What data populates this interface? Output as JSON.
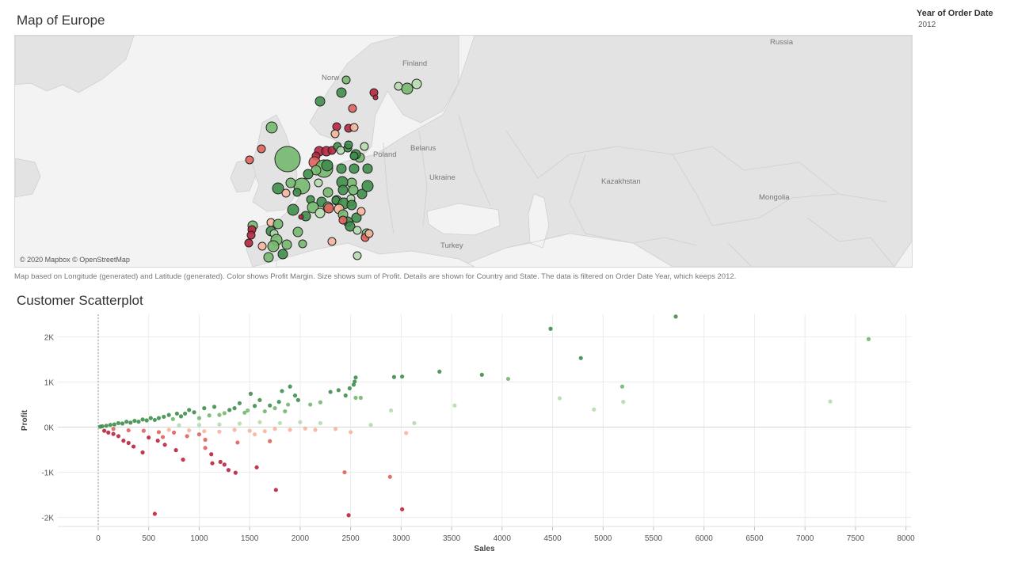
{
  "map": {
    "title": "Map of Europe",
    "attribution": "© 2020 Mapbox © OpenStreetMap",
    "labels": [
      {
        "text": "Russia",
        "name": "map-label-russia"
      },
      {
        "text": "Finland",
        "name": "map-label-finland"
      },
      {
        "text": "Norw",
        "name": "map-label-norway"
      },
      {
        "text": "Poland",
        "name": "map-label-poland"
      },
      {
        "text": "Belarus",
        "name": "map-label-belarus"
      },
      {
        "text": "Ukraine",
        "name": "map-label-ukraine"
      },
      {
        "text": "Kazakhstan",
        "name": "map-label-kazakhstan"
      },
      {
        "text": "Mongolia",
        "name": "map-label-mongolia"
      },
      {
        "text": "Turkey",
        "name": "map-label-turkey"
      }
    ],
    "caption": "Map based on Longitude (generated) and Latitude (generated).  Color shows Profit Margin.  Size shows sum of Profit.  Details are shown for Country and State. The data is filtered on Order Date Year, which keeps 2012.",
    "colors": {
      "ocean": "#f4f4f4",
      "land": "#e4e4e4",
      "border": "#cfcfcf",
      "marker_outline": "#222222"
    }
  },
  "filter": {
    "label": "Year of Order Date",
    "value": "2012"
  },
  "chart_data": {
    "type": "scatter",
    "title": "Customer Scatterplot",
    "xlabel": "Sales",
    "ylabel": "Profit",
    "xlim": [
      -400,
      8050
    ],
    "ylim": [
      -2200,
      2500
    ],
    "xticks": [
      0,
      500,
      1000,
      1500,
      2000,
      2500,
      3000,
      3500,
      4000,
      4500,
      5000,
      5500,
      6000,
      6500,
      7000,
      7500,
      8000
    ],
    "xtick_labels": [
      "0",
      "500",
      "1000",
      "1500",
      "2000",
      "2500",
      "3000",
      "3500",
      "4000",
      "4500",
      "5000",
      "5500",
      "6000",
      "6500",
      "7000",
      "7500",
      "8000"
    ],
    "yticks": [
      -2000,
      -1000,
      0,
      1000,
      2000
    ],
    "ytick_labels": [
      "-2K",
      "-1K",
      "0K",
      "1K",
      "2K"
    ],
    "grid": true,
    "color_encoding": "Profit Margin",
    "colors": {
      "strong_positive": "#3e8e4a",
      "positive": "#74b86e",
      "light_positive": "#b5dcae",
      "light_negative": "#f6b59c",
      "negative": "#e0625c",
      "strong_negative": "#b8243e"
    },
    "points": [
      {
        "x": 4480,
        "y": 2180
      },
      {
        "x": 5720,
        "y": 2450
      },
      {
        "x": 7630,
        "y": 1950
      },
      {
        "x": 4780,
        "y": 1530
      },
      {
        "x": 3380,
        "y": 1230
      },
      {
        "x": 3800,
        "y": 1160
      },
      {
        "x": 4060,
        "y": 1070
      },
      {
        "x": 3010,
        "y": 1120
      },
      {
        "x": 2930,
        "y": 1110
      },
      {
        "x": 5190,
        "y": 900
      },
      {
        "x": 5200,
        "y": 560
      },
      {
        "x": 4570,
        "y": 640
      },
      {
        "x": 4910,
        "y": 390
      },
      {
        "x": 7250,
        "y": 570
      },
      {
        "x": 3530,
        "y": 480
      },
      {
        "x": 3130,
        "y": 90
      },
      {
        "x": 3050,
        "y": -130
      },
      {
        "x": 2900,
        "y": 370
      },
      {
        "x": 2700,
        "y": 50
      },
      {
        "x": 2550,
        "y": 1100
      },
      {
        "x": 2540,
        "y": 1010
      },
      {
        "x": 2530,
        "y": 940
      },
      {
        "x": 2490,
        "y": 860
      },
      {
        "x": 2450,
        "y": 700
      },
      {
        "x": 2380,
        "y": 820
      },
      {
        "x": 2300,
        "y": 780
      },
      {
        "x": 2200,
        "y": 550
      },
      {
        "x": 2100,
        "y": 500
      },
      {
        "x": 2550,
        "y": 650
      },
      {
        "x": 2600,
        "y": 650
      },
      {
        "x": 1950,
        "y": 700
      },
      {
        "x": 1980,
        "y": 600
      },
      {
        "x": 1900,
        "y": 900
      },
      {
        "x": 1880,
        "y": 500
      },
      {
        "x": 1850,
        "y": 350
      },
      {
        "x": 1820,
        "y": 800
      },
      {
        "x": 1790,
        "y": 560
      },
      {
        "x": 1750,
        "y": 420
      },
      {
        "x": 1700,
        "y": 480
      },
      {
        "x": 1650,
        "y": 350
      },
      {
        "x": 1600,
        "y": 600
      },
      {
        "x": 1550,
        "y": 470
      },
      {
        "x": 1510,
        "y": 740
      },
      {
        "x": 1480,
        "y": 370
      },
      {
        "x": 1450,
        "y": 320
      },
      {
        "x": 1400,
        "y": 530
      },
      {
        "x": 1350,
        "y": 420
      },
      {
        "x": 1300,
        "y": 380
      },
      {
        "x": 1250,
        "y": 310
      },
      {
        "x": 1200,
        "y": 270
      },
      {
        "x": 1150,
        "y": 450
      },
      {
        "x": 1100,
        "y": 260
      },
      {
        "x": 1050,
        "y": 420
      },
      {
        "x": 1000,
        "y": 200
      },
      {
        "x": 950,
        "y": 330
      },
      {
        "x": 900,
        "y": 380
      },
      {
        "x": 860,
        "y": 300
      },
      {
        "x": 820,
        "y": 240
      },
      {
        "x": 780,
        "y": 300
      },
      {
        "x": 740,
        "y": 180
      },
      {
        "x": 700,
        "y": 270
      },
      {
        "x": 650,
        "y": 230
      },
      {
        "x": 600,
        "y": 200
      },
      {
        "x": 560,
        "y": 160
      },
      {
        "x": 520,
        "y": 200
      },
      {
        "x": 480,
        "y": 150
      },
      {
        "x": 440,
        "y": 170
      },
      {
        "x": 400,
        "y": 120
      },
      {
        "x": 360,
        "y": 140
      },
      {
        "x": 320,
        "y": 100
      },
      {
        "x": 280,
        "y": 120
      },
      {
        "x": 240,
        "y": 80
      },
      {
        "x": 200,
        "y": 90
      },
      {
        "x": 160,
        "y": 60
      },
      {
        "x": 120,
        "y": 50
      },
      {
        "x": 80,
        "y": 30
      },
      {
        "x": 40,
        "y": 20
      },
      {
        "x": 20,
        "y": 10
      },
      {
        "x": 2200,
        "y": 90
      },
      {
        "x": 2000,
        "y": 110
      },
      {
        "x": 1800,
        "y": 90
      },
      {
        "x": 1600,
        "y": 110
      },
      {
        "x": 1400,
        "y": 80
      },
      {
        "x": 1200,
        "y": 60
      },
      {
        "x": 1000,
        "y": 50
      },
      {
        "x": 800,
        "y": 40
      },
      {
        "x": 2050,
        "y": -30
      },
      {
        "x": 1900,
        "y": -60
      },
      {
        "x": 1750,
        "y": -40
      },
      {
        "x": 1650,
        "y": -90
      },
      {
        "x": 1500,
        "y": -80
      },
      {
        "x": 1350,
        "y": -60
      },
      {
        "x": 1200,
        "y": -100
      },
      {
        "x": 1050,
        "y": -90
      },
      {
        "x": 900,
        "y": -70
      },
      {
        "x": 750,
        "y": -120
      },
      {
        "x": 600,
        "y": -110
      },
      {
        "x": 450,
        "y": -80
      },
      {
        "x": 300,
        "y": -70
      },
      {
        "x": 150,
        "y": -40
      },
      {
        "x": 2500,
        "y": -110
      },
      {
        "x": 2350,
        "y": -40
      },
      {
        "x": 1380,
        "y": -340
      },
      {
        "x": 1700,
        "y": -310
      },
      {
        "x": 1060,
        "y": -280
      },
      {
        "x": 880,
        "y": -200
      },
      {
        "x": 640,
        "y": -220
      },
      {
        "x": 2480,
        "y": -1950
      },
      {
        "x": 3010,
        "y": -1820
      },
      {
        "x": 2440,
        "y": -1000
      },
      {
        "x": 2890,
        "y": -1100
      },
      {
        "x": 1760,
        "y": -1390
      },
      {
        "x": 1570,
        "y": -890
      },
      {
        "x": 1360,
        "y": -1010
      },
      {
        "x": 1290,
        "y": -950
      },
      {
        "x": 1250,
        "y": -830
      },
      {
        "x": 1210,
        "y": -770
      },
      {
        "x": 1130,
        "y": -800
      },
      {
        "x": 1120,
        "y": -600
      },
      {
        "x": 1060,
        "y": -460
      },
      {
        "x": 840,
        "y": -720
      },
      {
        "x": 770,
        "y": -510
      },
      {
        "x": 660,
        "y": -390
      },
      {
        "x": 590,
        "y": -300
      },
      {
        "x": 440,
        "y": -560
      },
      {
        "x": 350,
        "y": -430
      },
      {
        "x": 300,
        "y": -350
      },
      {
        "x": 250,
        "y": -300
      },
      {
        "x": 200,
        "y": -200
      },
      {
        "x": 150,
        "y": -150
      },
      {
        "x": 100,
        "y": -120
      },
      {
        "x": 60,
        "y": -80
      },
      {
        "x": 560,
        "y": -1920
      },
      {
        "x": 1550,
        "y": -160
      },
      {
        "x": 2150,
        "y": -60
      },
      {
        "x": 1000,
        "y": -160
      },
      {
        "x": 700,
        "y": -60
      },
      {
        "x": 500,
        "y": -230
      }
    ]
  }
}
